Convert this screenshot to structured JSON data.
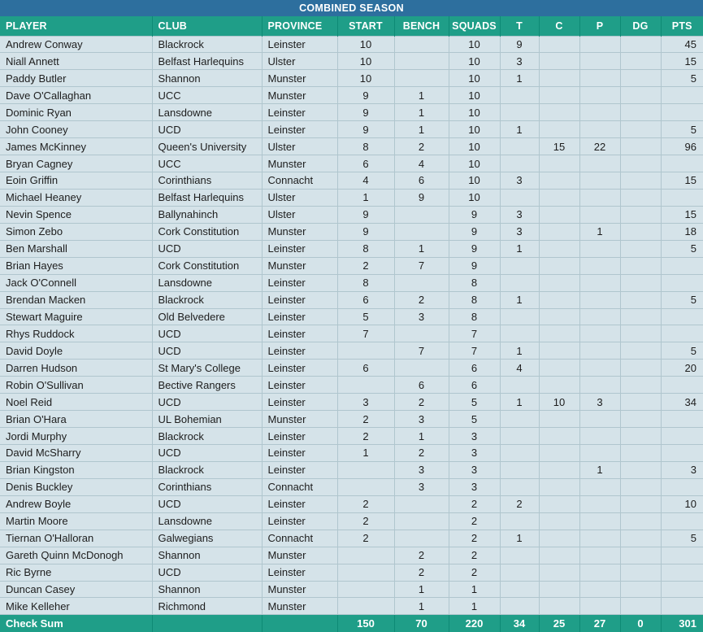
{
  "title": "COMBINED SEASON",
  "colors": {
    "title_bar": "#2d6f9e",
    "header": "#1f9e88",
    "header_line": "#0e8a75",
    "row_background": "#d5e3e9",
    "gridline": "#b0c6ce",
    "row_text": "#1d1d1d",
    "header_text": "#ffffff"
  },
  "table": {
    "columns": [
      {
        "label": "PLAYER",
        "align": "left"
      },
      {
        "label": "CLUB",
        "align": "left"
      },
      {
        "label": "PROVINCE",
        "align": "left"
      },
      {
        "label": "START",
        "align": "center"
      },
      {
        "label": "BENCH",
        "align": "center"
      },
      {
        "label": "SQUADS",
        "align": "center"
      },
      {
        "label": "T",
        "align": "center"
      },
      {
        "label": "C",
        "align": "center"
      },
      {
        "label": "P",
        "align": "center"
      },
      {
        "label": "DG",
        "align": "center"
      },
      {
        "label": "PTS",
        "align": "right"
      }
    ],
    "rows": [
      [
        "Andrew Conway",
        "Blackrock",
        "Leinster",
        "10",
        "",
        "10",
        "9",
        "",
        "",
        "",
        "45"
      ],
      [
        "Niall Annett",
        "Belfast Harlequins",
        "Ulster",
        "10",
        "",
        "10",
        "3",
        "",
        "",
        "",
        "15"
      ],
      [
        "Paddy Butler",
        "Shannon",
        "Munster",
        "10",
        "",
        "10",
        "1",
        "",
        "",
        "",
        "5"
      ],
      [
        "Dave O'Callaghan",
        "UCC",
        "Munster",
        "9",
        "1",
        "10",
        "",
        "",
        "",
        "",
        ""
      ],
      [
        "Dominic Ryan",
        "Lansdowne",
        "Leinster",
        "9",
        "1",
        "10",
        "",
        "",
        "",
        "",
        ""
      ],
      [
        "John Cooney",
        "UCD",
        "Leinster",
        "9",
        "1",
        "10",
        "1",
        "",
        "",
        "",
        "5"
      ],
      [
        "James McKinney",
        "Queen's University",
        "Ulster",
        "8",
        "2",
        "10",
        "",
        "15",
        "22",
        "",
        "96"
      ],
      [
        "Bryan Cagney",
        "UCC",
        "Munster",
        "6",
        "4",
        "10",
        "",
        "",
        "",
        "",
        ""
      ],
      [
        "Eoin Griffin",
        "Corinthians",
        "Connacht",
        "4",
        "6",
        "10",
        "3",
        "",
        "",
        "",
        "15"
      ],
      [
        "Michael Heaney",
        "Belfast Harlequins",
        "Ulster",
        "1",
        "9",
        "10",
        "",
        "",
        "",
        "",
        ""
      ],
      [
        "Nevin Spence",
        "Ballynahinch",
        "Ulster",
        "9",
        "",
        "9",
        "3",
        "",
        "",
        "",
        "15"
      ],
      [
        "Simon Zebo",
        "Cork Constitution",
        "Munster",
        "9",
        "",
        "9",
        "3",
        "",
        "1",
        "",
        "18"
      ],
      [
        "Ben Marshall",
        "UCD",
        "Leinster",
        "8",
        "1",
        "9",
        "1",
        "",
        "",
        "",
        "5"
      ],
      [
        "Brian Hayes",
        "Cork Constitution",
        "Munster",
        "2",
        "7",
        "9",
        "",
        "",
        "",
        "",
        ""
      ],
      [
        "Jack O'Connell",
        "Lansdowne",
        "Leinster",
        "8",
        "",
        "8",
        "",
        "",
        "",
        "",
        ""
      ],
      [
        "Brendan Macken",
        "Blackrock",
        "Leinster",
        "6",
        "2",
        "8",
        "1",
        "",
        "",
        "",
        "5"
      ],
      [
        "Stewart Maguire",
        "Old Belvedere",
        "Leinster",
        "5",
        "3",
        "8",
        "",
        "",
        "",
        "",
        ""
      ],
      [
        "Rhys Ruddock",
        "UCD",
        "Leinster",
        "7",
        "",
        "7",
        "",
        "",
        "",
        "",
        ""
      ],
      [
        "David Doyle",
        "UCD",
        "Leinster",
        "",
        "7",
        "7",
        "1",
        "",
        "",
        "",
        "5"
      ],
      [
        "Darren Hudson",
        "St Mary's College",
        "Leinster",
        "6",
        "",
        "6",
        "4",
        "",
        "",
        "",
        "20"
      ],
      [
        "Robin O'Sullivan",
        "Bective Rangers",
        "Leinster",
        "",
        "6",
        "6",
        "",
        "",
        "",
        "",
        ""
      ],
      [
        "Noel Reid",
        "UCD",
        "Leinster",
        "3",
        "2",
        "5",
        "1",
        "10",
        "3",
        "",
        "34"
      ],
      [
        "Brian O'Hara",
        "UL Bohemian",
        "Munster",
        "2",
        "3",
        "5",
        "",
        "",
        "",
        "",
        ""
      ],
      [
        "Jordi Murphy",
        "Blackrock",
        "Leinster",
        "2",
        "1",
        "3",
        "",
        "",
        "",
        "",
        ""
      ],
      [
        "David McSharry",
        "UCD",
        "Leinster",
        "1",
        "2",
        "3",
        "",
        "",
        "",
        "",
        ""
      ],
      [
        "Brian Kingston",
        "Blackrock",
        "Leinster",
        "",
        "3",
        "3",
        "",
        "",
        "1",
        "",
        "3"
      ],
      [
        "Denis Buckley",
        "Corinthians",
        "Connacht",
        "",
        "3",
        "3",
        "",
        "",
        "",
        "",
        ""
      ],
      [
        "Andrew Boyle",
        "UCD",
        "Leinster",
        "2",
        "",
        "2",
        "2",
        "",
        "",
        "",
        "10"
      ],
      [
        "Martin Moore",
        "Lansdowne",
        "Leinster",
        "2",
        "",
        "2",
        "",
        "",
        "",
        "",
        ""
      ],
      [
        "Tiernan O'Halloran",
        "Galwegians",
        "Connacht",
        "2",
        "",
        "2",
        "1",
        "",
        "",
        "",
        "5"
      ],
      [
        "Gareth Quinn McDonogh",
        "Shannon",
        "Munster",
        "",
        "2",
        "2",
        "",
        "",
        "",
        "",
        ""
      ],
      [
        "Ric Byrne",
        "UCD",
        "Leinster",
        "",
        "2",
        "2",
        "",
        "",
        "",
        "",
        ""
      ],
      [
        "Duncan Casey",
        "Shannon",
        "Munster",
        "",
        "1",
        "1",
        "",
        "",
        "",
        "",
        ""
      ],
      [
        "Mike Kelleher",
        "Richmond",
        "Munster",
        "",
        "1",
        "1",
        "",
        "",
        "",
        "",
        ""
      ]
    ],
    "checksum": [
      "Check Sum",
      "",
      "",
      "150",
      "70",
      "220",
      "34",
      "25",
      "27",
      "0",
      "301"
    ]
  }
}
